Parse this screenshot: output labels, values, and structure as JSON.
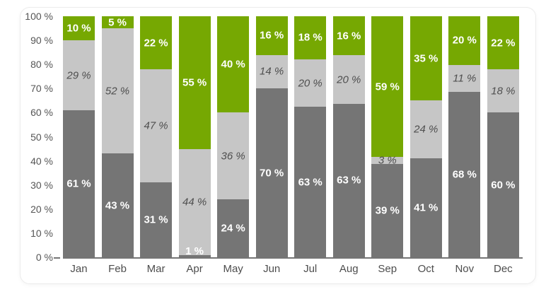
{
  "colors": {
    "series_bottom": "#757575",
    "series_middle": "#c6c6c6",
    "series_top": "#76a802",
    "axis_line": "#757575",
    "axis_text": "#555555",
    "label_on_dark": "#ffffff",
    "label_on_light": "#4f4f4f",
    "card_border": "#ececec",
    "background": "#ffffff"
  },
  "chart_data": {
    "type": "bar",
    "subtype": "stacked-100-percent-column",
    "title": "",
    "xlabel": "",
    "ylabel": "",
    "ylim": [
      0,
      100
    ],
    "grid": "off",
    "legend_position": "none",
    "label_suffix": " %",
    "categories": [
      "Jan",
      "Feb",
      "Mar",
      "Apr",
      "May",
      "Jun",
      "Jul",
      "Aug",
      "Sep",
      "Oct",
      "Nov",
      "Dec"
    ],
    "series": [
      {
        "name": "dark-gray-bottom",
        "color": "#757575",
        "values": [
          61,
          43,
          31,
          1,
          24,
          70,
          63,
          63,
          39,
          41,
          68,
          60
        ]
      },
      {
        "name": "light-gray-middle",
        "color": "#c6c6c6",
        "values": [
          29,
          52,
          47,
          44,
          36,
          14,
          20,
          20,
          3,
          24,
          11,
          18
        ]
      },
      {
        "name": "green-top",
        "color": "#76a802",
        "values": [
          10,
          5,
          22,
          55,
          40,
          16,
          18,
          16,
          59,
          35,
          20,
          22
        ]
      }
    ],
    "y_ticks": [
      "0 %",
      "10 %",
      "20 %",
      "30 %",
      "40 %",
      "50 %",
      "60 %",
      "70 %",
      "80 %",
      "90 %",
      "100 %"
    ]
  }
}
